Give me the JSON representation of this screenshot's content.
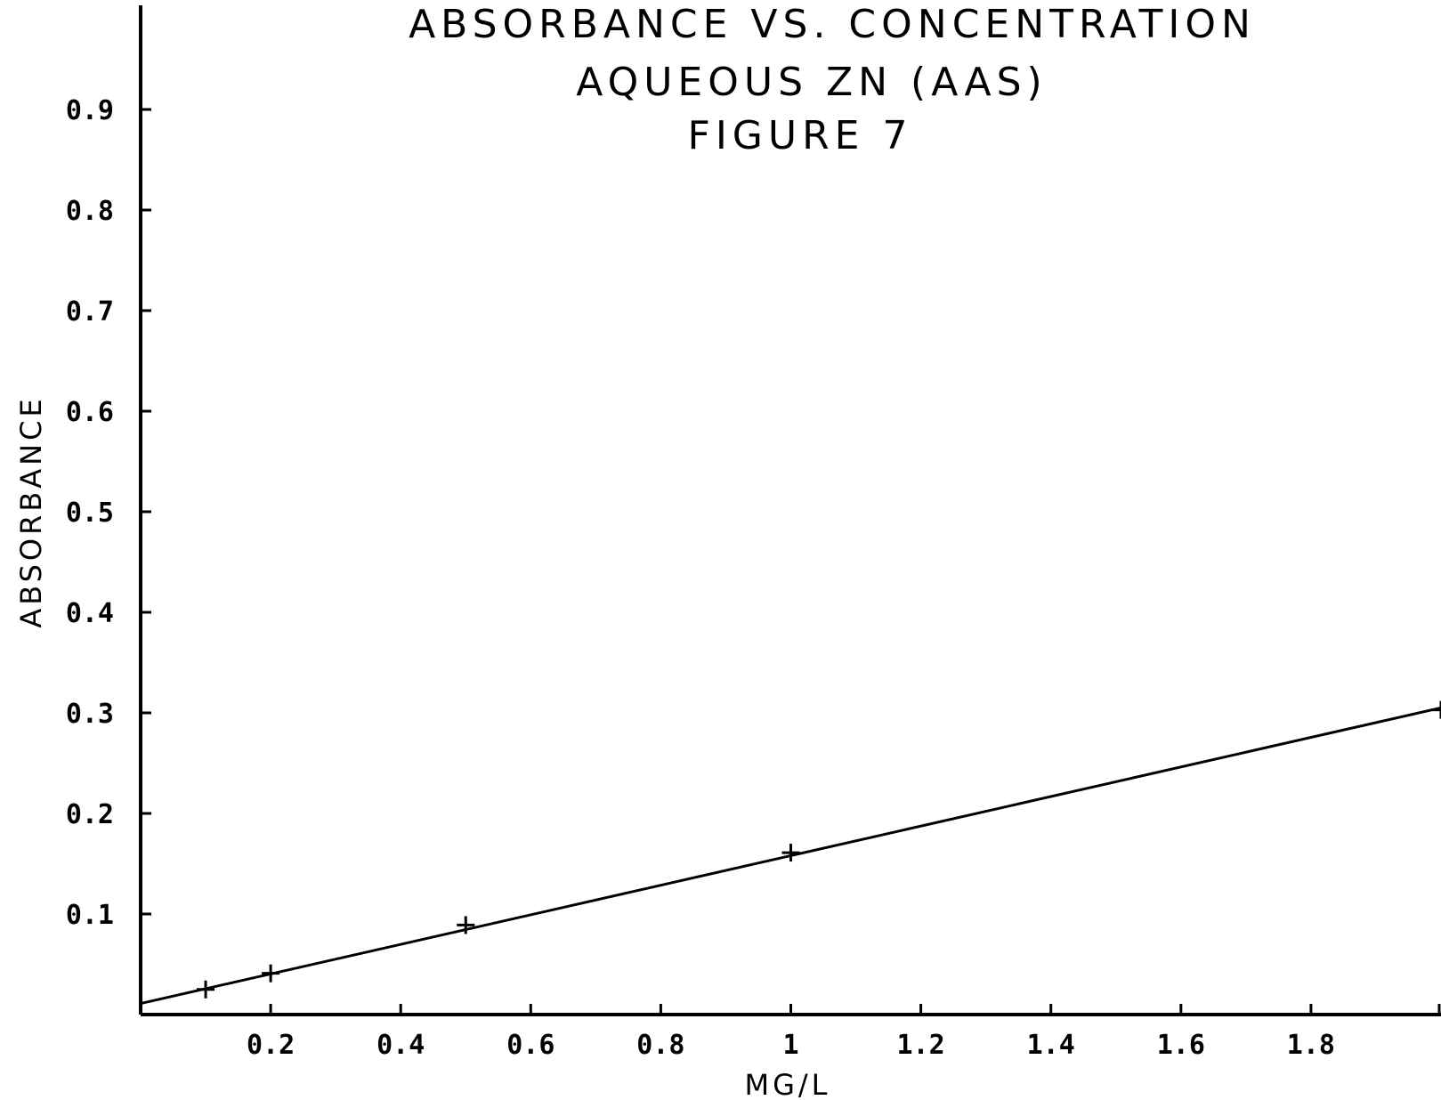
{
  "chart_data": {
    "type": "scatter",
    "title_lines": [
      "ABSORBANCE VS. CONCENTRATION",
      "AQUEOUS ZN (AAS)",
      "FIGURE 7"
    ],
    "xlabel": "MG/L",
    "ylabel": "ABSORBANCE",
    "xlim": [
      0,
      2
    ],
    "ylim": [
      0,
      0.95
    ],
    "x_ticks": [
      0.2,
      0.4,
      0.6,
      0.8,
      1,
      1.2,
      1.4,
      1.6,
      1.8
    ],
    "x_tick_labels": [
      "0.2",
      "0.4",
      "0.6",
      "0.8",
      "1",
      "1.2",
      "1.4",
      "1.6",
      "1.8"
    ],
    "y_ticks": [
      0.1,
      0.2,
      0.3,
      0.4,
      0.5,
      0.6,
      0.7,
      0.8,
      0.9
    ],
    "y_tick_labels": [
      "0.1",
      "0.2",
      "0.3",
      "0.4",
      "0.5",
      "0.6",
      "0.7",
      "0.8",
      "0.9"
    ],
    "series": [
      {
        "marker": "plus",
        "x": [
          0.1,
          0.2,
          0.5,
          1.0,
          2.0
        ],
        "y": [
          0.025,
          0.041,
          0.089,
          0.161,
          0.303
        ]
      }
    ],
    "fit_line": {
      "x": [
        0,
        2
      ],
      "y": [
        0.011,
        0.305
      ]
    },
    "grid": false,
    "legend": "none"
  }
}
